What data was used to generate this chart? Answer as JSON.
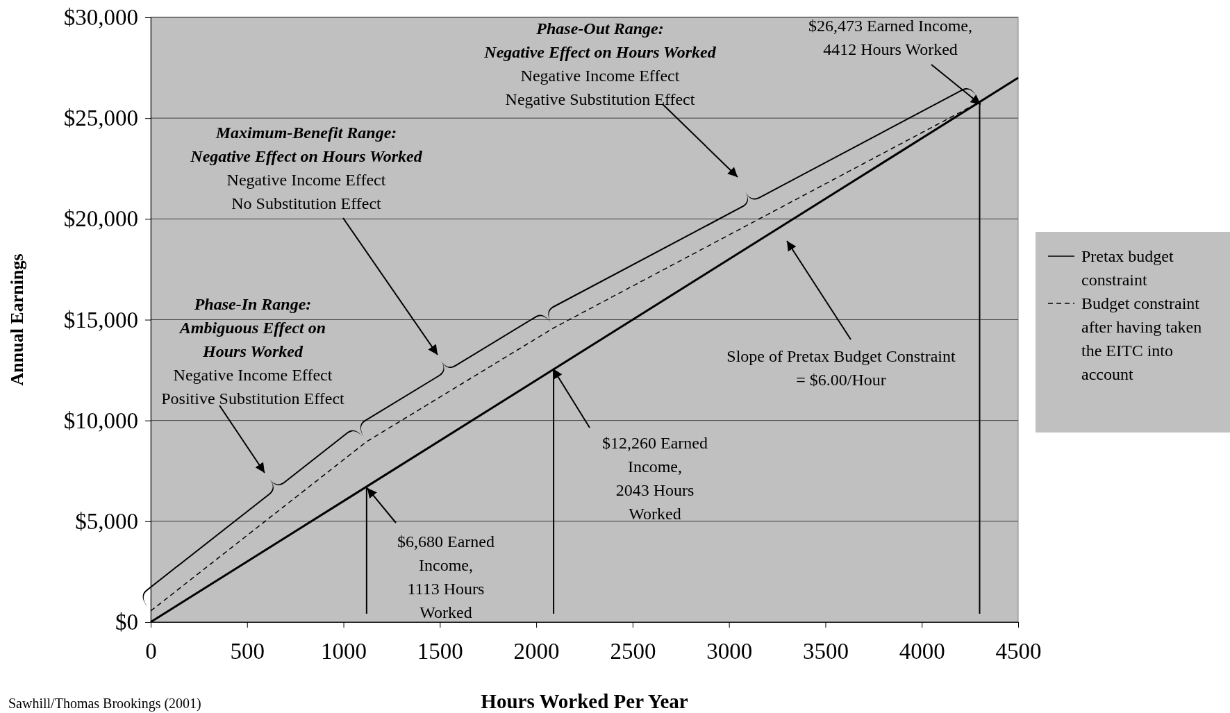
{
  "chart_data": {
    "type": "line",
    "xlabel": "Hours Worked Per Year",
    "ylabel": "Annual Earnings",
    "xlim": [
      0,
      4500
    ],
    "xticks": [
      0,
      500,
      1000,
      1500,
      2000,
      2500,
      3000,
      3500,
      4000,
      4500
    ],
    "ylim": [
      0,
      30000
    ],
    "yticks": [
      {
        "value": 0,
        "label": "$0"
      },
      {
        "value": 5000,
        "label": "$5,000"
      },
      {
        "value": 10000,
        "label": "$10,000"
      },
      {
        "value": 15000,
        "label": "$15,000"
      },
      {
        "value": 20000,
        "label": "$20,000"
      },
      {
        "value": 25000,
        "label": "$25,000"
      },
      {
        "value": 30000,
        "label": "$30,000"
      }
    ],
    "grid": "y",
    "legend": "right",
    "marker": "none",
    "series": [
      {
        "name": "Pretax budget constraint",
        "color": "#000000",
        "line_style": "solid",
        "x": [
          0,
          4500
        ],
        "values": [
          0,
          27000
        ]
      },
      {
        "name": "Budget constraint after having taken the EITC into account",
        "color": "#000000",
        "line_style": "dashed",
        "x": [
          0,
          1120,
          2090,
          4300
        ],
        "values": [
          550,
          8950,
          14590,
          25800
        ]
      }
    ],
    "ref_lines": [
      {
        "axis": "x",
        "value": 1120,
        "label": null,
        "color": "#000000"
      },
      {
        "axis": "x",
        "value": 2090,
        "label": null,
        "color": "#000000"
      },
      {
        "axis": "x",
        "value": 4300,
        "label": null,
        "color": "#000000"
      }
    ],
    "annotations": [
      "Phase-In Range:\nAmbiguous Effect on\nHours Worked\nNegative Income Effect\nPositive Substitution Effect",
      "Maximum-Benefit Range:\nNegative Effect on Hours Worked\nNegative Income Effect\nNo Substitution Effect",
      "Phase-Out Range:\nNegative Effect on Hours Worked\nNegative Income Effect\nNegative Substitution Effect",
      {
        "text": "$26,473 Earned Income,\n4412 Hours Worked",
        "x": 4305,
        "y": 25680
      },
      {
        "text": "$6,680 Earned\nIncome,\n1113 Hours\nWorked",
        "x": 1123,
        "y": 6650
      },
      {
        "text": "$12,260 Earned\nIncome,\n2043 Hours\nWorked",
        "x": 2087,
        "y": 12570
      },
      "Slope of Pretax Budget Constraint\n= $6.00/Hour",
      "Sawhill/Thomas Brookings (2001)"
    ]
  }
}
